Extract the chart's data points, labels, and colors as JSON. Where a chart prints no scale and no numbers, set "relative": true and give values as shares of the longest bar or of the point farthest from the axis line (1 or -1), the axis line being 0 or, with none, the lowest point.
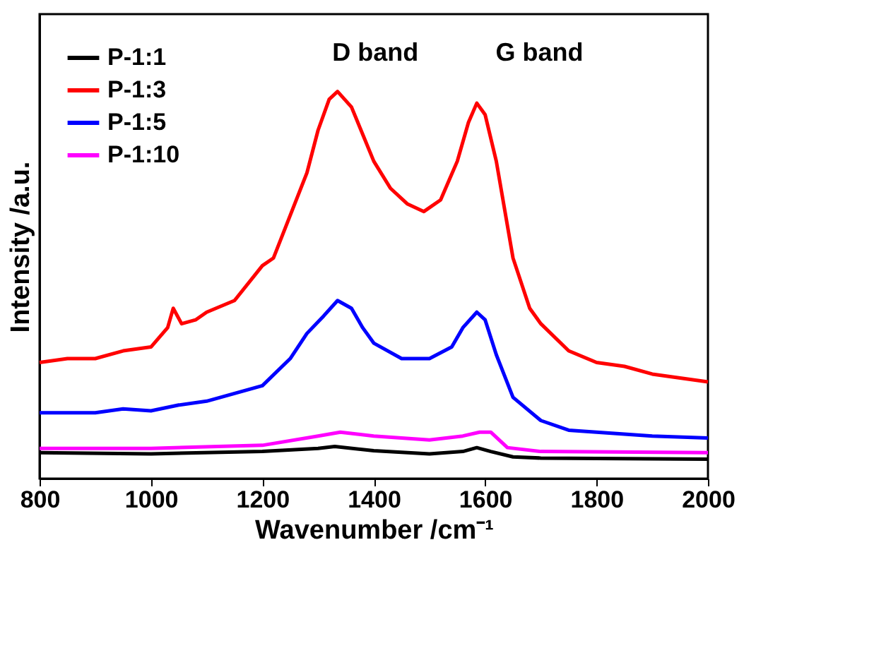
{
  "chart_data": {
    "type": "line",
    "relative": true,
    "xlabel": "Wavenumber /cm⁻¹",
    "ylabel": "Intensity /a.u.",
    "xlim": [
      800,
      2000
    ],
    "xticks": [
      800,
      1000,
      1200,
      1400,
      1600,
      1800,
      2000
    ],
    "grid": false,
    "legend": "top left",
    "marker": "none",
    "line_style": "solid",
    "tick_labels": "x",
    "annotations": [
      "D band",
      "G band"
    ],
    "series": [
      {
        "name": "P-1:1",
        "color": "#000000",
        "x": [
          800,
          1000,
          1200,
          1300,
          1330,
          1400,
          1500,
          1560,
          1585,
          1610,
          1650,
          1700,
          2000
        ],
        "values": [
          0.067,
          0.064,
          0.07,
          0.078,
          0.083,
          0.072,
          0.064,
          0.07,
          0.08,
          0.07,
          0.056,
          0.053,
          0.05
        ]
      },
      {
        "name": "P-1:3",
        "color": "#ff0000",
        "x": [
          800,
          850,
          900,
          950,
          1000,
          1030,
          1040,
          1055,
          1080,
          1100,
          1150,
          1200,
          1220,
          1250,
          1280,
          1300,
          1320,
          1335,
          1360,
          1380,
          1400,
          1430,
          1460,
          1490,
          1520,
          1550,
          1570,
          1585,
          1600,
          1620,
          1650,
          1680,
          1700,
          1750,
          1800,
          1850,
          1900,
          1950,
          2000
        ],
        "values": [
          0.3,
          0.31,
          0.31,
          0.33,
          0.34,
          0.39,
          0.44,
          0.4,
          0.41,
          0.43,
          0.46,
          0.55,
          0.57,
          0.68,
          0.79,
          0.9,
          0.98,
          1.0,
          0.96,
          0.89,
          0.82,
          0.75,
          0.71,
          0.69,
          0.72,
          0.82,
          0.92,
          0.97,
          0.94,
          0.82,
          0.57,
          0.44,
          0.4,
          0.33,
          0.3,
          0.29,
          0.27,
          0.26,
          0.25
        ]
      },
      {
        "name": "P-1:5",
        "color": "#0000ff",
        "x": [
          800,
          900,
          950,
          1000,
          1050,
          1100,
          1150,
          1200,
          1250,
          1280,
          1310,
          1335,
          1360,
          1380,
          1400,
          1450,
          1500,
          1540,
          1560,
          1585,
          1600,
          1620,
          1650,
          1700,
          1750,
          1800,
          1900,
          2000
        ],
        "values": [
          0.17,
          0.17,
          0.18,
          0.175,
          0.19,
          0.2,
          0.22,
          0.24,
          0.31,
          0.375,
          0.42,
          0.46,
          0.44,
          0.39,
          0.35,
          0.31,
          0.31,
          0.34,
          0.39,
          0.43,
          0.41,
          0.32,
          0.21,
          0.15,
          0.125,
          0.12,
          0.11,
          0.105
        ]
      },
      {
        "name": "P-1:10",
        "color": "#ff00ff",
        "x": [
          800,
          1000,
          1200,
          1300,
          1340,
          1400,
          1500,
          1560,
          1590,
          1610,
          1640,
          1700,
          2000
        ],
        "values": [
          0.078,
          0.078,
          0.086,
          0.11,
          0.12,
          0.11,
          0.1,
          0.11,
          0.12,
          0.12,
          0.08,
          0.07,
          0.067
        ]
      }
    ]
  }
}
